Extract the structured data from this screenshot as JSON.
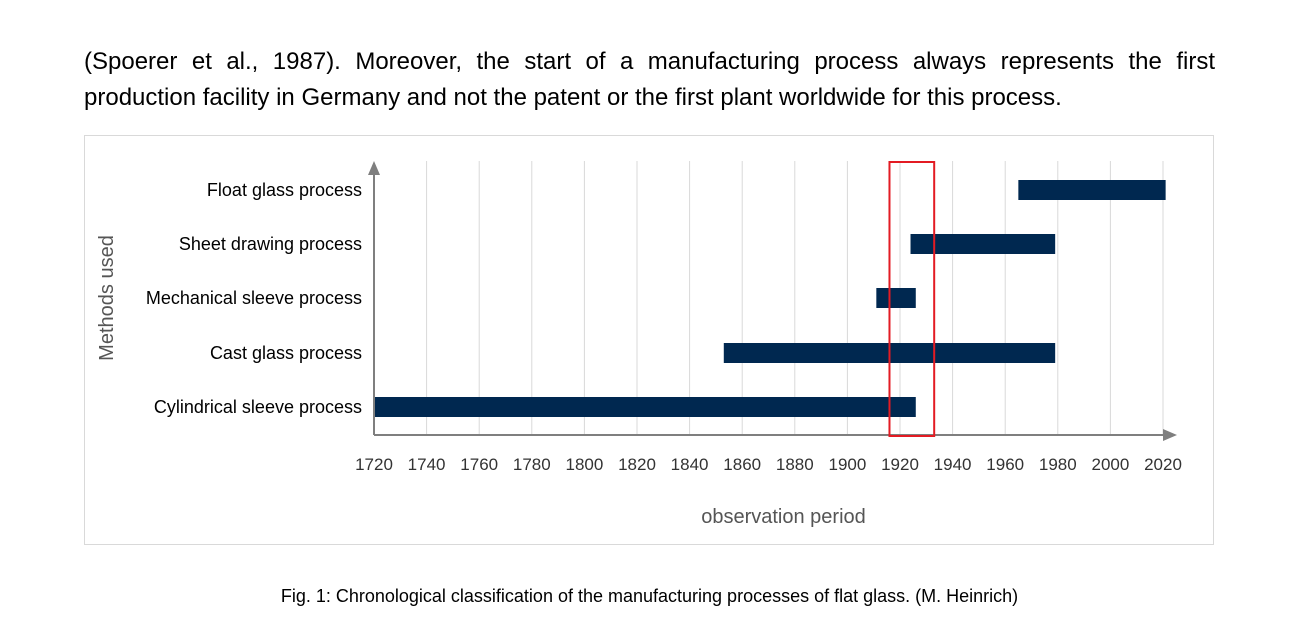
{
  "text": {
    "line1": "(Spoerer et al., 1987). Moreover, the start of a manufacturing process always represents the first",
    "line2": "production facility in Germany and not the patent or the first plant worldwide for this process.",
    "caption": "Fig. 1: Chronological classification of the manufacturing processes of flat glass. (M. Heinrich)"
  },
  "chart_data": {
    "type": "bar",
    "orientation": "horizontal-range",
    "xlabel": "observation period",
    "ylabel": "Methods used",
    "xlim": [
      1720,
      2020
    ],
    "xticks": [
      1720,
      1740,
      1760,
      1780,
      1800,
      1820,
      1840,
      1860,
      1880,
      1900,
      1920,
      1940,
      1960,
      1980,
      2000,
      2020
    ],
    "grid": "vertical",
    "bar_color": "#002850",
    "highlight_color": "#e31b23",
    "highlight_range": [
      1916,
      1933
    ],
    "categories": [
      "Float glass process",
      "Sheet drawing process",
      "Mechanical sleeve process",
      "Cast glass process",
      "Cylindrical sleeve process"
    ],
    "ranges": [
      [
        1965,
        2021
      ],
      [
        1924,
        1979
      ],
      [
        1911,
        1926
      ],
      [
        1853,
        1979
      ],
      [
        1720,
        1926
      ]
    ]
  }
}
